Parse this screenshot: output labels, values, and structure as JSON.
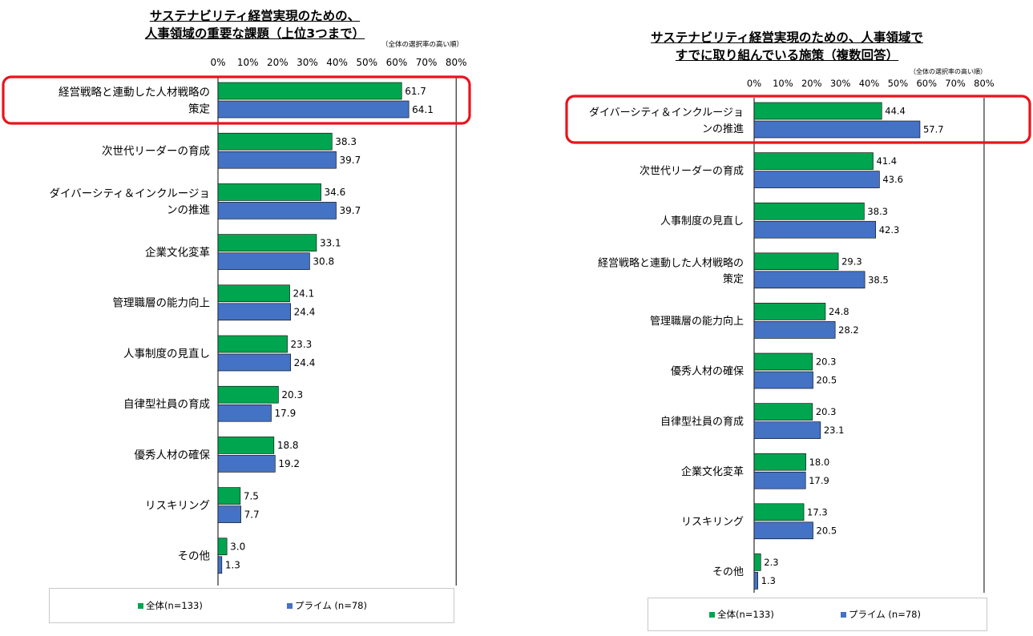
{
  "charts": [
    {
      "title_line1": "サステナビリティ経営実現のための、",
      "title_line2": "人事領域の重要な課題（上位3つまで）",
      "note": "（全体の選択率の高い順）",
      "legend": [
        {
          "label": "全体(n=133)",
          "color": "#00a550"
        },
        {
          "label": "プライム (n=78)",
          "color": "#4472c4"
        }
      ]
    },
    {
      "title_line1": "サステナビリティ経営実現のための、人事領域で",
      "title_line2": "すでに取り組んでいる施策（複数回答）",
      "note": "（全体の選択率の高い順）",
      "legend": [
        {
          "label": "全体(n=133)",
          "color": "#00a550"
        },
        {
          "label": "プライム (n=78)",
          "color": "#4472c4"
        }
      ]
    }
  ],
  "chart_data": [
    {
      "type": "bar",
      "orientation": "horizontal",
      "title": "サステナビリティ経営実現のための、人事領域の重要な課題（上位3つまで）",
      "xlim": [
        0,
        80
      ],
      "x_ticks": [
        "0%",
        "10%",
        "20%",
        "30%",
        "40%",
        "50%",
        "60%",
        "70%",
        "80%"
      ],
      "categories": [
        [
          "経営戦略と連動した人材戦略の",
          "策定"
        ],
        [
          "次世代リーダーの育成"
        ],
        [
          "ダイバーシティ＆インクルージョ",
          "ンの推進"
        ],
        [
          "企業文化変革"
        ],
        [
          "管理職層の能力向上"
        ],
        [
          "人事制度の見直し"
        ],
        [
          "自律型社員の育成"
        ],
        [
          "優秀人材の確保"
        ],
        [
          "リスキリング"
        ],
        [
          "その他"
        ]
      ],
      "series": [
        {
          "name": "全体(n=133)",
          "color": "#00a550",
          "values": [
            61.7,
            38.3,
            34.6,
            33.1,
            24.1,
            23.3,
            20.3,
            18.8,
            7.5,
            3.0
          ]
        },
        {
          "name": "プライム (n=78)",
          "color": "#4472c4",
          "values": [
            64.1,
            39.7,
            39.7,
            30.8,
            24.4,
            24.4,
            17.9,
            19.2,
            7.7,
            1.3
          ]
        }
      ],
      "highlighted_category_index": 0,
      "highlight_color": "#e8141c",
      "legend_position": "bottom"
    },
    {
      "type": "bar",
      "orientation": "horizontal",
      "title": "サステナビリティ経営実現のための、人事領域ですでに取り組んでいる施策（複数回答）",
      "xlim": [
        0,
        80
      ],
      "x_ticks": [
        "0%",
        "10%",
        "20%",
        "30%",
        "40%",
        "50%",
        "60%",
        "70%",
        "80%"
      ],
      "categories": [
        [
          "ダイバーシティ＆インクルージョ",
          "ンの推進"
        ],
        [
          "次世代リーダーの育成"
        ],
        [
          "人事制度の見直し"
        ],
        [
          "経営戦略と連動した人材戦略の",
          "策定"
        ],
        [
          "管理職層の能力向上"
        ],
        [
          "優秀人材の確保"
        ],
        [
          "自律型社員の育成"
        ],
        [
          "企業文化変革"
        ],
        [
          "リスキリング"
        ],
        [
          "その他"
        ]
      ],
      "series": [
        {
          "name": "全体(n=133)",
          "color": "#00a550",
          "values": [
            44.4,
            41.4,
            38.3,
            29.3,
            24.8,
            20.3,
            20.3,
            18.0,
            17.3,
            2.3
          ]
        },
        {
          "name": "プライム (n=78)",
          "color": "#4472c4",
          "values": [
            57.7,
            43.6,
            42.3,
            38.5,
            28.2,
            20.5,
            23.1,
            17.9,
            20.5,
            1.3
          ]
        }
      ],
      "highlighted_category_index": 0,
      "highlight_color": "#e8141c",
      "legend_position": "bottom"
    }
  ]
}
